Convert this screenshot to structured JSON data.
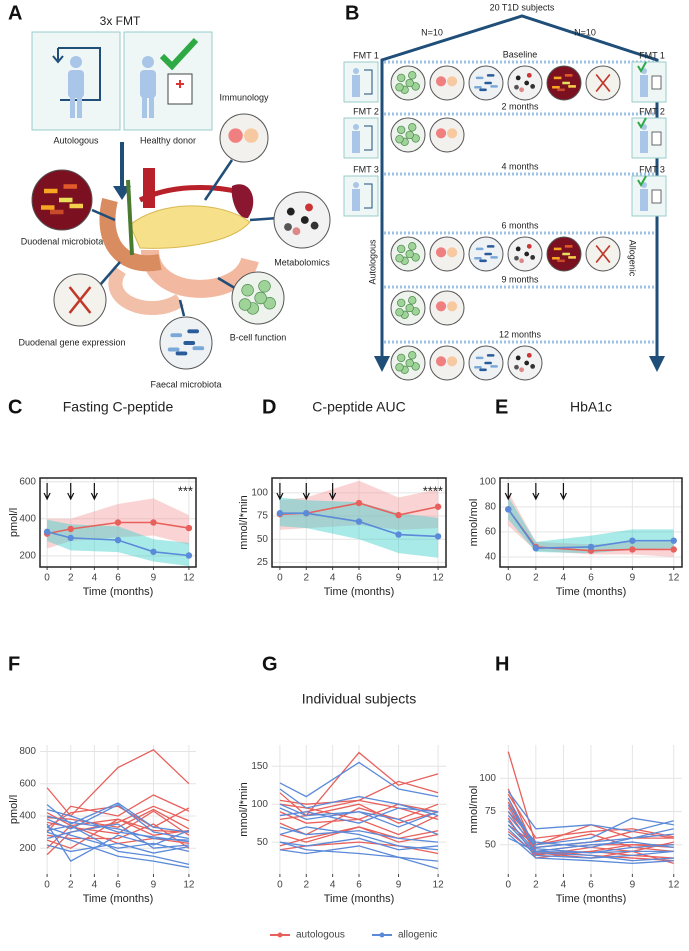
{
  "panel_a": {
    "label": "A",
    "title": "3x FMT",
    "donors": [
      "Autologous",
      "Healthy donor"
    ],
    "samples": [
      "Immunology",
      "Duodenal microbiota",
      "Metabolomics",
      "Duodenal gene expression",
      "B-cell function",
      "Faecal microbiota"
    ]
  },
  "panel_b": {
    "label": "B",
    "title": "20 T1D subjects",
    "arms": [
      {
        "n": "N=10",
        "name": "Autologous"
      },
      {
        "n": "N=10",
        "name": "Allogenic"
      }
    ],
    "fmt": [
      "FMT 1",
      "FMT 2",
      "FMT 3"
    ],
    "timepoints": [
      "Baseline",
      "2 months",
      "4 months",
      "6 months",
      "9 months",
      "12 months"
    ]
  },
  "legend": [
    {
      "name": "autologous",
      "color": "#e8605c"
    },
    {
      "name": "allogenic",
      "color": "#5b8ad8"
    }
  ],
  "chart_data": [
    {
      "type": "line",
      "label": "C",
      "title": "Fasting C-peptide",
      "ylabel": "pmol/l",
      "xlabel": "Time (months)",
      "x": [
        0,
        2,
        6,
        9,
        12
      ],
      "xlim": [
        -0.6,
        12.6
      ],
      "xticks": [
        0,
        2,
        4,
        6,
        9,
        12
      ],
      "ylim": [
        140,
        620
      ],
      "yticks": [
        200,
        400,
        600
      ],
      "grid": true,
      "fmt_times": [
        0,
        2,
        4
      ],
      "significance": "***",
      "series": [
        {
          "color": "#e8605c",
          "band_color": "#f4a0a0",
          "values": [
            320,
            345,
            380,
            380,
            350
          ],
          "lower": [
            240,
            280,
            300,
            310,
            260
          ],
          "upper": [
            400,
            400,
            480,
            510,
            420
          ]
        },
        {
          "color": "#5b8ad8",
          "band_color": "#3fd0cc",
          "values": [
            330,
            297,
            285,
            222,
            202
          ],
          "lower": [
            280,
            230,
            220,
            170,
            145
          ],
          "upper": [
            395,
            370,
            360,
            290,
            270
          ]
        }
      ]
    },
    {
      "type": "line",
      "label": "D",
      "title": "C-peptide AUC",
      "ylabel": "mmol/l*min",
      "xlabel": "Time (months)",
      "x": [
        0,
        2,
        6,
        9,
        12
      ],
      "xlim": [
        -0.6,
        12.6
      ],
      "xticks": [
        0,
        2,
        4,
        6,
        9,
        12
      ],
      "ylim": [
        20,
        116
      ],
      "yticks": [
        25,
        50,
        75,
        100
      ],
      "grid": true,
      "fmt_times": [
        0,
        2,
        4
      ],
      "significance": "****",
      "series": [
        {
          "color": "#e8605c",
          "band_color": "#f4a0a0",
          "values": [
            77,
            78,
            89,
            76,
            85
          ],
          "lower": [
            60,
            62,
            65,
            60,
            62
          ],
          "upper": [
            92,
            95,
            113,
            95,
            104
          ]
        },
        {
          "color": "#5b8ad8",
          "band_color": "#3fd0cc",
          "values": [
            78,
            78,
            69,
            55,
            53
          ],
          "lower": [
            64,
            62,
            50,
            35,
            30
          ],
          "upper": [
            95,
            92,
            90,
            78,
            73
          ]
        }
      ]
    },
    {
      "type": "line",
      "label": "E",
      "title": "HbA1c",
      "ylabel": "mmol/mol",
      "xlabel": "Time (months)",
      "x": [
        0,
        2,
        6,
        9,
        12
      ],
      "xlim": [
        -0.6,
        12.6
      ],
      "xticks": [
        0,
        2,
        4,
        6,
        9,
        12
      ],
      "ylim": [
        32,
        103
      ],
      "yticks": [
        40,
        60,
        80,
        100
      ],
      "grid": true,
      "fmt_times": [
        0,
        2,
        4
      ],
      "series": [
        {
          "color": "#e8605c",
          "band_color": "#f4a0a0",
          "values": [
            78,
            48,
            45,
            46,
            46
          ],
          "lower": [
            65,
            45,
            42,
            42,
            40
          ],
          "upper": [
            92,
            52,
            50,
            52,
            52
          ]
        },
        {
          "color": "#5b8ad8",
          "band_color": "#3fd0cc",
          "values": [
            78,
            47,
            48,
            53,
            53
          ],
          "lower": [
            70,
            44,
            43,
            46,
            47
          ],
          "upper": [
            88,
            52,
            57,
            62,
            62
          ]
        }
      ]
    },
    {
      "type": "line",
      "label": "F",
      "ylabel": "pmol/l",
      "xlabel": "Time (months)",
      "x": [
        0,
        2,
        6,
        9,
        12
      ],
      "xlim": [
        -0.6,
        12.6
      ],
      "xticks": [
        0,
        2,
        4,
        6,
        9,
        12
      ],
      "ylim": [
        40,
        840
      ],
      "yticks": [
        200,
        400,
        600,
        800
      ],
      "grid": true,
      "groups": [
        {
          "color": "#e8605c",
          "subjects": [
            [
              575,
              400,
              700,
              810,
              600
            ],
            [
              300,
              460,
              400,
              530,
              430
            ],
            [
              160,
              300,
              360,
              460,
              370
            ],
            [
              330,
              420,
              460,
              330,
              450
            ],
            [
              250,
              200,
              380,
              280,
              310
            ],
            [
              360,
              330,
              290,
              430,
              280
            ],
            [
              200,
              340,
              230,
              260,
              230
            ],
            [
              390,
              380,
              330,
              440,
              320
            ],
            [
              280,
              260,
              260,
              350,
              200
            ],
            [
              420,
              340,
              380,
              310,
              300
            ]
          ]
        },
        {
          "color": "#5b8ad8",
          "subjects": [
            [
              470,
              350,
              480,
              330,
              300
            ],
            [
              350,
              120,
              280,
              220,
              310
            ],
            [
              330,
              280,
              200,
              230,
              180
            ],
            [
              300,
              250,
              150,
              120,
              80
            ],
            [
              400,
              360,
              320,
              260,
              250
            ],
            [
              260,
              300,
              350,
              200,
              220
            ],
            [
              380,
              320,
              470,
              300,
              260
            ],
            [
              220,
              180,
              230,
              170,
              210
            ],
            [
              310,
              340,
              180,
              150,
              100
            ],
            [
              440,
              400,
              300,
              270,
              240
            ]
          ]
        }
      ]
    },
    {
      "type": "line",
      "label": "G",
      "title": "Individual subjects",
      "ylabel": "mmol/l*min",
      "xlabel": "Time (months)",
      "x": [
        0,
        2,
        6,
        9,
        12
      ],
      "xlim": [
        -0.6,
        12.6
      ],
      "xticks": [
        0,
        2,
        4,
        6,
        9,
        12
      ],
      "ylim": [
        8,
        178
      ],
      "yticks": [
        50,
        100,
        150
      ],
      "grid": true,
      "groups": [
        {
          "color": "#e8605c",
          "subjects": [
            [
              115,
              85,
              168,
              125,
              140
            ],
            [
              105,
              100,
              105,
              130,
              115
            ],
            [
              80,
              85,
              100,
              75,
              90
            ],
            [
              75,
              60,
              95,
              80,
              100
            ],
            [
              90,
              75,
              80,
              60,
              85
            ],
            [
              60,
              50,
              70,
              55,
              65
            ],
            [
              45,
              55,
              70,
              50,
              60
            ],
            [
              100,
              95,
              80,
              100,
              90
            ],
            [
              85,
              90,
              105,
              95,
              80
            ],
            [
              40,
              45,
              50,
              45,
              35
            ]
          ]
        },
        {
          "color": "#5b8ad8",
          "subjects": [
            [
              128,
              110,
              155,
              120,
              110
            ],
            [
              120,
              95,
              110,
              100,
              85
            ],
            [
              95,
              80,
              90,
              70,
              90
            ],
            [
              70,
              60,
              65,
              55,
              50
            ],
            [
              50,
              45,
              55,
              40,
              45
            ],
            [
              40,
              35,
              45,
              30,
              25
            ],
            [
              60,
              70,
              60,
              45,
              40
            ],
            [
              85,
              90,
              75,
              95,
              90
            ],
            [
              100,
              85,
              90,
              80,
              60
            ],
            [
              50,
              40,
              35,
              30,
              15
            ]
          ]
        }
      ]
    },
    {
      "type": "line",
      "label": "H",
      "ylabel": "mmol/mol",
      "xlabel": "Time (months)",
      "x": [
        0,
        2,
        6,
        9,
        12
      ],
      "xlim": [
        -0.6,
        12.6
      ],
      "xticks": [
        0,
        2,
        4,
        6,
        9,
        12
      ],
      "ylim": [
        28,
        125
      ],
      "yticks": [
        50,
        75,
        100
      ],
      "grid": true,
      "groups": [
        {
          "color": "#e8605c",
          "subjects": [
            [
              120,
              50,
              65,
              55,
              55
            ],
            [
              92,
              45,
              50,
              50,
              48
            ],
            [
              85,
              42,
              48,
              45,
              52
            ],
            [
              78,
              48,
              52,
              60,
              55
            ],
            [
              70,
              40,
              45,
              42,
              40
            ],
            [
              65,
              50,
              58,
              48,
              45
            ],
            [
              88,
              55,
              60,
              62,
              56
            ],
            [
              75,
              45,
              42,
              40,
              38
            ],
            [
              60,
              43,
              45,
              50,
              50
            ],
            [
              82,
              44,
              40,
              45,
              36
            ]
          ]
        },
        {
          "color": "#5b8ad8",
          "subjects": [
            [
              90,
              62,
              65,
              60,
              68
            ],
            [
              80,
              50,
              55,
              70,
              65
            ],
            [
              72,
              48,
              52,
              55,
              62
            ],
            [
              68,
              45,
              44,
              48,
              50
            ],
            [
              62,
              42,
              40,
              42,
              45
            ],
            [
              58,
              40,
              38,
              36,
              38
            ],
            [
              55,
              45,
              50,
              52,
              48
            ],
            [
              75,
              52,
              48,
              55,
              58
            ],
            [
              85,
              47,
              44,
              45,
              45
            ],
            [
              65,
              44,
              42,
              38,
              40
            ]
          ]
        }
      ]
    }
  ]
}
